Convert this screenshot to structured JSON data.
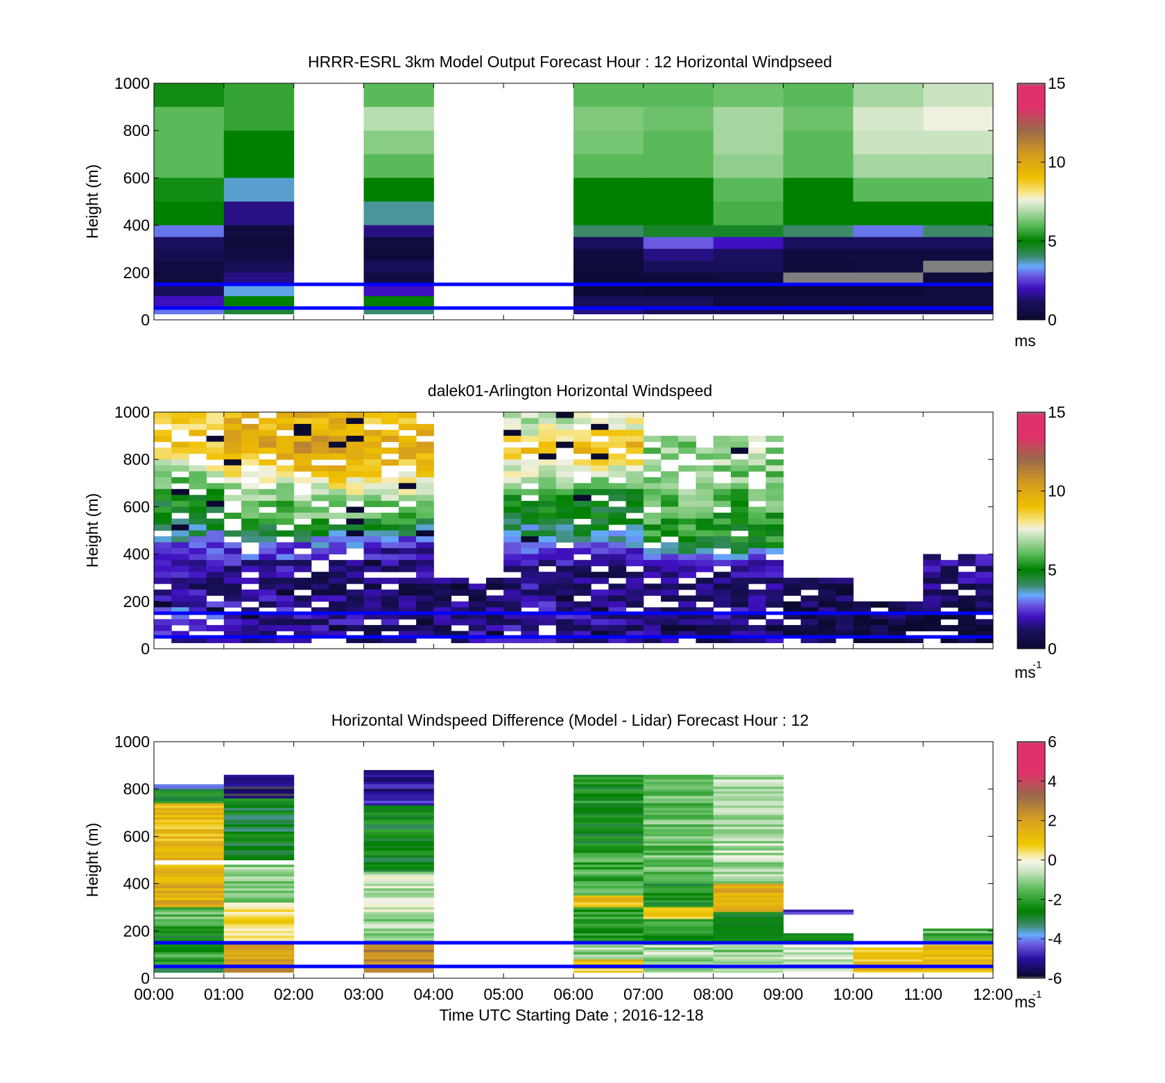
{
  "chart_data": [
    {
      "type": "heatmap",
      "title": "HRRR-ESRL 3km Model Output   Forecast Hour : 12 Horizontal Windpseed",
      "ylabel": "Height (m)",
      "ylim": [
        0,
        1000
      ],
      "yticks": [
        "0",
        "200",
        "400",
        "600",
        "800",
        "1000"
      ],
      "xlim": [
        "00:00",
        "12:00"
      ],
      "colorbar": {
        "ticks": [
          "0",
          "5",
          "10",
          "15"
        ],
        "range": [
          0,
          15
        ],
        "unit": "ms",
        "unit_sup": ""
      },
      "reference_lines_height_m": [
        150,
        50
      ],
      "reference_line_color": "#0000ff",
      "hours_missing": [
        2,
        4,
        5
      ],
      "hours_available": [
        0,
        1,
        3,
        6,
        7,
        8,
        9,
        10,
        11
      ],
      "profile_heights_m": [
        1000,
        900,
        800,
        700,
        600,
        500,
        400,
        350,
        300,
        250,
        200,
        150,
        100,
        50
      ],
      "profiles_ms": {
        "0": [
          5.2,
          6.0,
          6.0,
          6.0,
          5.2,
          5.0,
          3.0,
          1.2,
          0.8,
          0.5,
          0.4,
          1.0,
          2.0,
          3.0
        ],
        "1": [
          5.6,
          5.6,
          5.0,
          5.0,
          3.6,
          1.5,
          0.4,
          0.3,
          0.5,
          1.0,
          1.5,
          3.5,
          5.0,
          4.5
        ],
        "3": [
          6.0,
          7.0,
          6.5,
          6.0,
          5.0,
          3.8,
          1.5,
          0.4,
          0.3,
          1.0,
          0.5,
          2.0,
          5.0,
          4.0
        ],
        "6": [
          6.0,
          6.4,
          6.3,
          6.0,
          5.0,
          5.0,
          4.0,
          1.2,
          0.4,
          0.3,
          0.2,
          0.2,
          1.0,
          1.5
        ],
        "7": [
          6.0,
          6.2,
          6.0,
          6.0,
          5.0,
          5.0,
          4.6,
          2.8,
          1.5,
          1.0,
          0.3,
          0.1,
          1.0,
          1.0
        ],
        "8": [
          6.2,
          6.8,
          6.8,
          6.6,
          6.0,
          5.8,
          4.6,
          2.0,
          1.2,
          1.0,
          0.4,
          0.2,
          0.4,
          1.0
        ],
        "9": [
          6.0,
          6.2,
          6.0,
          6.0,
          5.0,
          5.0,
          4.0,
          1.2,
          0.4,
          0.3,
          0.0,
          0.2,
          0.4,
          0.8
        ],
        "10": [
          6.8,
          7.3,
          7.2,
          6.8,
          6.0,
          5.0,
          3.0,
          1.2,
          0.4,
          0.4,
          0.0,
          0.2,
          0.4,
          1.0
        ],
        "11": [
          7.2,
          7.6,
          7.2,
          6.8,
          6.0,
          5.0,
          4.0,
          1.2,
          0.4,
          0.0,
          0.3,
          0.4,
          0.4,
          1.0
        ]
      }
    },
    {
      "type": "heatmap",
      "title": "dalek01-Arlington  Horizontal Windspeed",
      "ylabel": "Height (m)",
      "ylim": [
        0,
        1000
      ],
      "yticks": [
        "0",
        "200",
        "400",
        "600",
        "800",
        "1000"
      ],
      "xlim": [
        "00:00",
        "12:00"
      ],
      "colorbar": {
        "ticks": [
          "0",
          "5",
          "10",
          "15"
        ],
        "range": [
          0,
          15
        ],
        "unit": "ms",
        "unit_sup": "-1"
      },
      "reference_lines_height_m": [
        150,
        50
      ],
      "reference_line_color": "#0000ff",
      "lidar_profile_heights_m": [
        950,
        850,
        750,
        650,
        550,
        450,
        350,
        250,
        150,
        75
      ],
      "lidar_windspeed_by_hour_ms": {
        "0": [
          8.5,
          9.0,
          7.0,
          5.0,
          4.8,
          3.0,
          1.6,
          1.4,
          2.8,
          2.0
        ],
        "1": [
          9.5,
          10.0,
          8.0,
          6.4,
          5.8,
          3.2,
          1.8,
          1.2,
          2.0,
          1.5
        ],
        "2": [
          9.5,
          10.5,
          9.0,
          7.0,
          6.0,
          3.0,
          1.6,
          1.0,
          1.6,
          1.4
        ],
        "3": [
          9.0,
          10.0,
          8.5,
          6.8,
          5.5,
          2.5,
          1.5,
          1.0,
          1.6,
          1.2
        ],
        "4": [
          null,
          null,
          null,
          null,
          null,
          null,
          null,
          1.0,
          1.5,
          1.4
        ],
        "5": [
          7.0,
          9.0,
          7.5,
          5.2,
          4.5,
          3.2,
          1.4,
          1.6,
          1.8,
          1.5
        ],
        "6": [
          7.5,
          9.5,
          7.0,
          5.0,
          4.8,
          3.5,
          1.2,
          1.2,
          1.8,
          1.5
        ],
        "7": [
          null,
          6.5,
          6.2,
          6.2,
          5.8,
          5.0,
          1.4,
          1.2,
          1.6,
          1.2
        ],
        "8": [
          null,
          6.8,
          6.5,
          6.0,
          5.5,
          5.0,
          1.6,
          1.2,
          1.6,
          1.2
        ],
        "9": [
          null,
          null,
          null,
          null,
          null,
          null,
          null,
          0.8,
          0.8,
          0.6
        ],
        "10": [
          null,
          null,
          null,
          null,
          null,
          null,
          null,
          null,
          0.6,
          0.5
        ],
        "11": [
          null,
          null,
          null,
          null,
          null,
          null,
          1.6,
          1.2,
          0.8,
          0.6
        ]
      }
    },
    {
      "type": "heatmap",
      "title": "Horizontal Windspeed Difference (Model - Lidar) Forecast Hour : 12",
      "xlabel": "Time UTC  Starting Date ; 2016-12-18",
      "ylabel": "Height (m)",
      "ylim": [
        0,
        1000
      ],
      "yticks": [
        "0",
        "200",
        "400",
        "600",
        "800",
        "1000"
      ],
      "xticks": [
        "00:00",
        "01:00",
        "02:00",
        "03:00",
        "04:00",
        "05:00",
        "06:00",
        "07:00",
        "08:00",
        "09:00",
        "10:00",
        "11:00",
        "12:00"
      ],
      "colorbar": {
        "ticks": [
          "-6",
          "-4",
          "-2",
          "0",
          "2",
          "4",
          "6"
        ],
        "range": [
          -6,
          6
        ],
        "unit": "ms",
        "unit_sup": "-1"
      },
      "reference_lines_height_m": [
        150,
        50
      ],
      "reference_line_color": "#0000ff",
      "difference_columns": [
        {
          "hour": 0,
          "segments": [
            {
              "from": 800,
              "to": 820,
              "value": -4
            },
            {
              "from": 740,
              "to": 800,
              "value": -2.5
            },
            {
              "from": 500,
              "to": 740,
              "value": 1.2
            },
            {
              "from": 300,
              "to": 480,
              "value": 1.5
            },
            {
              "from": 220,
              "to": 300,
              "value": -1.5
            },
            {
              "from": 150,
              "to": 220,
              "value": -2.5
            },
            {
              "from": 50,
              "to": 150,
              "value": -2.0
            },
            {
              "from": 25,
              "to": 50,
              "value": -3.0
            }
          ]
        },
        {
          "hour": 1,
          "segments": [
            {
              "from": 760,
              "to": 860,
              "value": -5.5
            },
            {
              "from": 500,
              "to": 760,
              "value": -2.8
            },
            {
              "from": 320,
              "to": 480,
              "value": -1.2
            },
            {
              "from": 200,
              "to": 320,
              "value": 0.6
            },
            {
              "from": 150,
              "to": 200,
              "value": 0.3
            },
            {
              "from": 25,
              "to": 150,
              "value": 2.2
            }
          ]
        },
        {
          "hour": 3,
          "segments": [
            {
              "from": 730,
              "to": 880,
              "value": -5.0
            },
            {
              "from": 450,
              "to": 730,
              "value": -2.6
            },
            {
              "from": 250,
              "to": 450,
              "value": -0.6
            },
            {
              "from": 150,
              "to": 250,
              "value": -1.0
            },
            {
              "from": 25,
              "to": 150,
              "value": 2.5
            }
          ]
        },
        {
          "hour": 6,
          "segments": [
            {
              "from": 550,
              "to": 860,
              "value": -2.4
            },
            {
              "from": 350,
              "to": 550,
              "value": -1.8
            },
            {
              "from": 300,
              "to": 350,
              "value": 1.0
            },
            {
              "from": 150,
              "to": 300,
              "value": -2.0
            },
            {
              "from": 80,
              "to": 150,
              "value": -1.0
            },
            {
              "from": 25,
              "to": 80,
              "value": 1.0
            }
          ]
        },
        {
          "hour": 7,
          "segments": [
            {
              "from": 400,
              "to": 860,
              "value": -1.4
            },
            {
              "from": 300,
              "to": 400,
              "value": -2.4
            },
            {
              "from": 250,
              "to": 300,
              "value": 0.8
            },
            {
              "from": 150,
              "to": 250,
              "value": -2.2
            },
            {
              "from": 25,
              "to": 150,
              "value": -0.8
            }
          ]
        },
        {
          "hour": 8,
          "segments": [
            {
              "from": 400,
              "to": 860,
              "value": -0.8
            },
            {
              "from": 280,
              "to": 400,
              "value": 1.6
            },
            {
              "from": 150,
              "to": 280,
              "value": -2.4
            },
            {
              "from": 25,
              "to": 150,
              "value": -1.0
            }
          ]
        },
        {
          "hour": 9,
          "segments": [
            {
              "from": 270,
              "to": 290,
              "value": -5.0
            },
            {
              "from": 150,
              "to": 190,
              "value": -2.4
            },
            {
              "from": 25,
              "to": 150,
              "value": -0.6
            }
          ]
        },
        {
          "hour": 10,
          "segments": [
            {
              "from": 25,
              "to": 130,
              "value": 1.0
            }
          ]
        },
        {
          "hour": 11,
          "segments": [
            {
              "from": 150,
              "to": 210,
              "value": -1.6
            },
            {
              "from": 25,
              "to": 150,
              "value": 1.0
            }
          ]
        }
      ]
    }
  ]
}
